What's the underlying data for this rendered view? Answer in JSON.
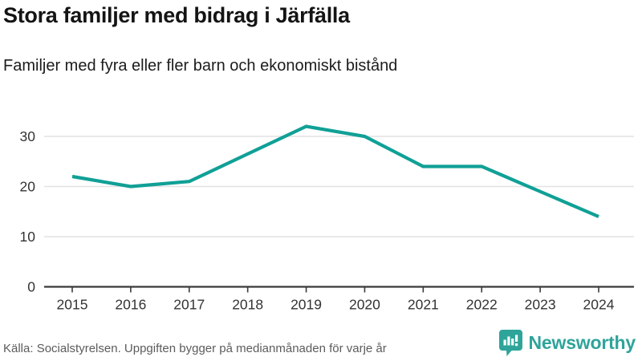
{
  "header": {
    "title": "Stora familjer med bidrag i Järfälla",
    "subtitle": "Familjer med fyra eller fler barn och ekonomiskt bistånd"
  },
  "chart_data": {
    "type": "line",
    "title": "Stora familjer med bidrag i Järfälla",
    "subtitle": "Familjer med fyra eller fler barn och ekonomiskt bistånd",
    "x": [
      2015,
      2016,
      2017,
      2018,
      2019,
      2020,
      2021,
      2022,
      2023,
      2024
    ],
    "series": [
      {
        "name": "Familjer med fyra eller fler barn och ekonomiskt bistånd",
        "values": [
          22,
          20,
          21,
          26.5,
          32,
          30,
          24,
          24,
          19,
          14
        ]
      }
    ],
    "xlabel": "",
    "ylabel": "",
    "ylim": [
      0,
      33
    ],
    "yticks": [
      0,
      10,
      20,
      30
    ],
    "grid": true,
    "legend": "none",
    "colors": {
      "line": "#10a096",
      "gridline": "#e2e2e2",
      "axis": "#3a3a3a",
      "tick_label": "#333333"
    }
  },
  "footer": {
    "source": "Källa: Socialstyrelsen. Uppgiften bygger på medianmånaden för varje år",
    "logo_text": "Newsworthy",
    "logo_color": "#2fa49a"
  }
}
